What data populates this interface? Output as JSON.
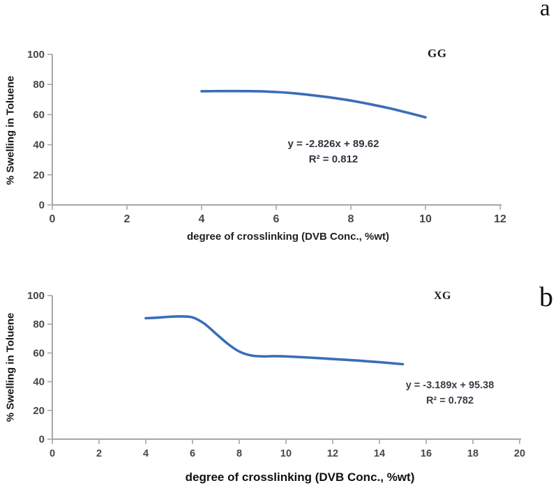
{
  "figure": {
    "background": "#ffffff",
    "axis_color": "#a6a6a6",
    "tick_label_color": "#4a4740",
    "y_tick_label_color": "#46444b"
  },
  "chart_data": [
    {
      "id": "a",
      "type": "line",
      "panel_letter": "a",
      "series_label": "GG",
      "xlabel": "degree of crosslinking (DVB Conc., %wt)",
      "ylabel": "% Swelling in Toluene",
      "equation": "y = -2.826x + 89.62",
      "r_squared": "R² = 0.812",
      "line_color": "#3a6db8",
      "xlim": [
        0,
        12
      ],
      "ylim": [
        0,
        100
      ],
      "x_ticks": [
        0,
        2,
        4,
        6,
        8,
        10,
        12
      ],
      "y_ticks": [
        0,
        20,
        40,
        60,
        80,
        100
      ],
      "x": [
        4,
        4.5,
        5,
        5.5,
        6,
        6.5,
        7,
        7.5,
        8,
        8.5,
        9,
        9.5,
        10
      ],
      "y": [
        75.5,
        75.6,
        75.6,
        75.5,
        75.0,
        74.1,
        72.8,
        71.2,
        69.3,
        67.0,
        64.4,
        61.4,
        58.2
      ],
      "legend": "none",
      "grid": false
    },
    {
      "id": "b",
      "type": "line",
      "panel_letter": "b",
      "series_label": "XG",
      "xlabel": "degree of crosslinking (DVB Conc., %wt)",
      "ylabel": "% Swelling in Toluene",
      "equation": "y = -3.189x + 95.38",
      "r_squared": "R² = 0.782",
      "line_color": "#3a6db8",
      "xlim": [
        0,
        20
      ],
      "ylim": [
        0,
        100
      ],
      "x_ticks": [
        0,
        2,
        4,
        6,
        8,
        10,
        12,
        14,
        16,
        18,
        20
      ],
      "y_ticks": [
        0,
        20,
        40,
        60,
        80,
        100
      ],
      "x": [
        4,
        4.5,
        5,
        5.5,
        6,
        6.5,
        7,
        7.5,
        8,
        8.5,
        9,
        9.5,
        10,
        11,
        12,
        13,
        14,
        15
      ],
      "y": [
        84.2,
        84.6,
        85.2,
        85.5,
        84.8,
        80.5,
        73.5,
        66.5,
        61.0,
        58.3,
        57.6,
        57.8,
        57.6,
        56.8,
        55.8,
        54.8,
        53.6,
        52.2
      ],
      "legend": "none",
      "grid": false
    }
  ]
}
